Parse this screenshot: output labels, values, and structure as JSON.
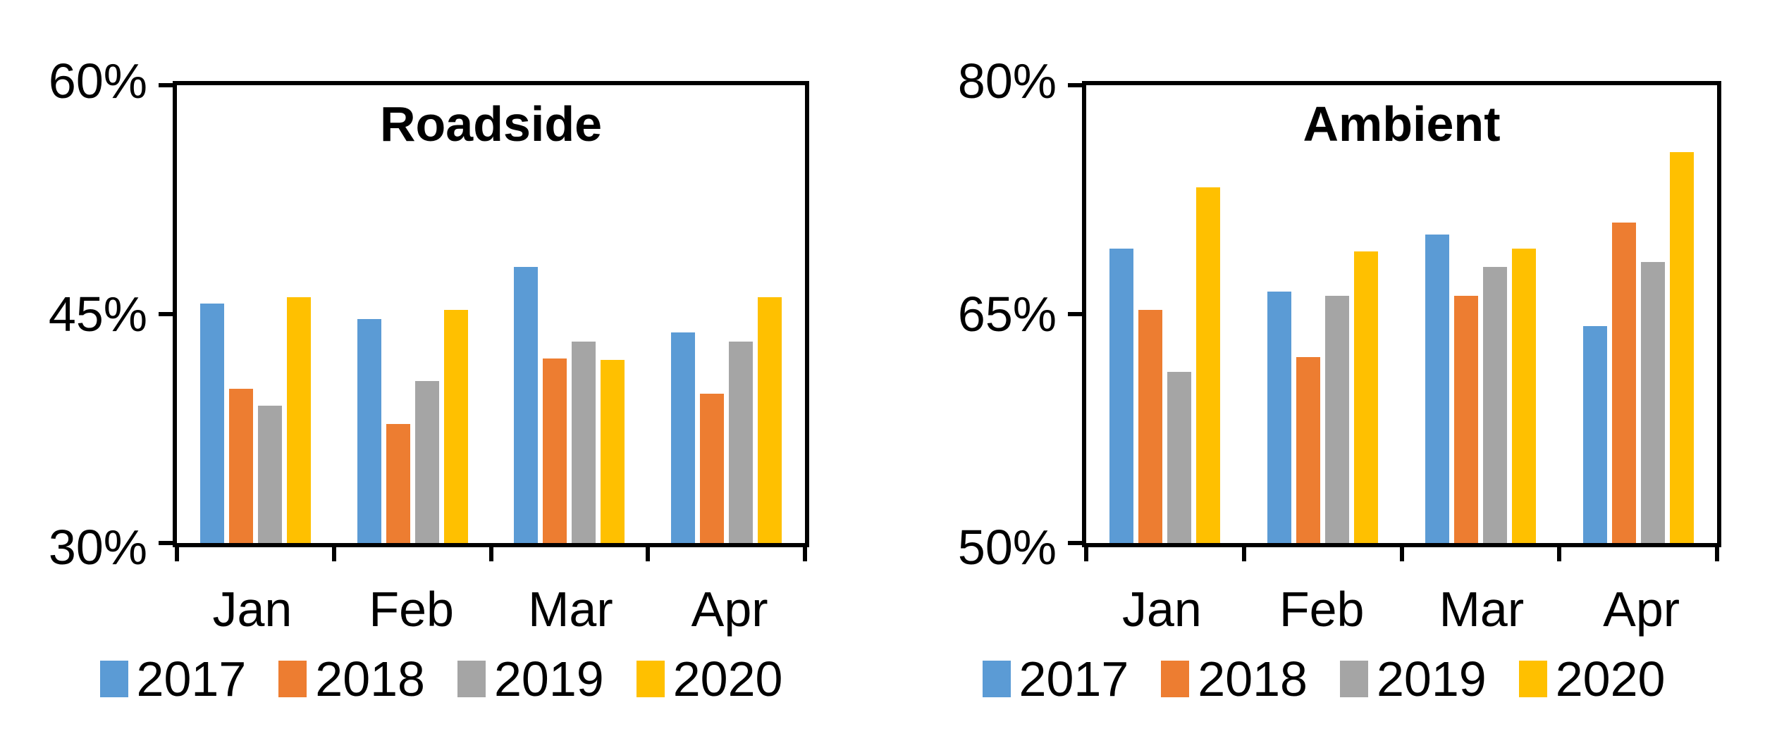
{
  "figure": {
    "background": "#FFFFFF",
    "axis_color": "#000000",
    "text_color": "#000000"
  },
  "chart_data": [
    {
      "type": "bar",
      "title": "Roadside",
      "categories": [
        "Jan",
        "Feb",
        "Mar",
        "Apr"
      ],
      "series": [
        {
          "name": "2017",
          "color": "#5B9BD5",
          "values": [
            45.7,
            44.7,
            48.1,
            43.8
          ]
        },
        {
          "name": "2018",
          "color": "#ED7D31",
          "values": [
            40.1,
            37.8,
            42.1,
            39.8
          ]
        },
        {
          "name": "2019",
          "color": "#A5A5A5",
          "values": [
            39.0,
            40.6,
            43.2,
            43.2
          ]
        },
        {
          "name": "2020",
          "color": "#FFC000",
          "values": [
            46.1,
            45.3,
            42.0,
            46.1
          ]
        }
      ],
      "ylim": [
        30,
        60
      ],
      "yticks": [
        {
          "value": 30,
          "label": "30%"
        },
        {
          "value": 45,
          "label": "45%"
        },
        {
          "value": 60,
          "label": "60%"
        }
      ],
      "legend": [
        "2017",
        "2018",
        "2019",
        "2020"
      ],
      "legend_position": "bottom",
      "grid": false
    },
    {
      "type": "bar",
      "title": "Ambient",
      "categories": [
        "Jan",
        "Feb",
        "Mar",
        "Apr"
      ],
      "series": [
        {
          "name": "2017",
          "color": "#5B9BD5",
          "values": [
            69.3,
            66.5,
            70.2,
            64.2
          ]
        },
        {
          "name": "2018",
          "color": "#ED7D31",
          "values": [
            65.3,
            62.2,
            66.2,
            71.0
          ]
        },
        {
          "name": "2019",
          "color": "#A5A5A5",
          "values": [
            61.2,
            66.2,
            68.1,
            68.4
          ]
        },
        {
          "name": "2020",
          "color": "#FFC000",
          "values": [
            73.3,
            69.1,
            69.3,
            75.6
          ]
        }
      ],
      "ylim": [
        50,
        80
      ],
      "yticks": [
        {
          "value": 50,
          "label": "50%"
        },
        {
          "value": 65,
          "label": "65%"
        },
        {
          "value": 80,
          "label": "80%"
        }
      ],
      "legend": [
        "2017",
        "2018",
        "2019",
        "2020"
      ],
      "legend_position": "bottom",
      "grid": false
    }
  ]
}
